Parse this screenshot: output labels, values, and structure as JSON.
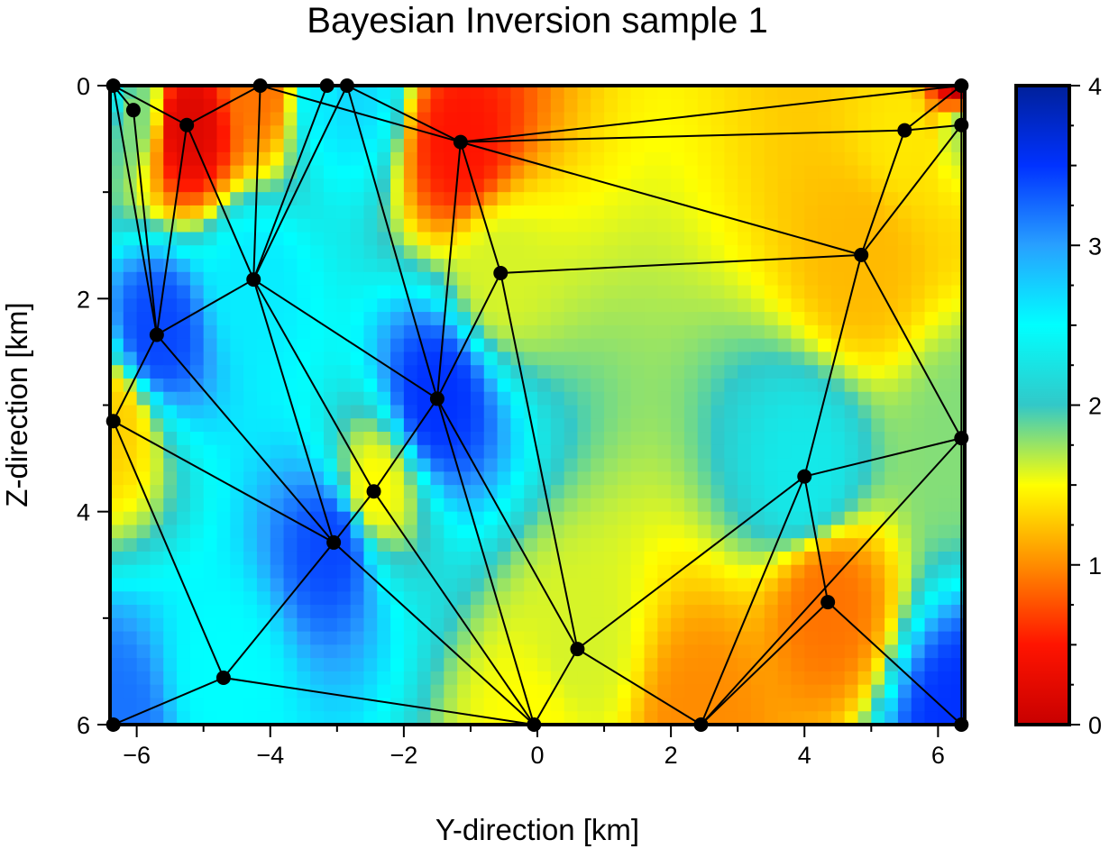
{
  "chart_data": {
    "type": "heatmap",
    "title": "Bayesian Inversion sample 1",
    "xlabel": "Y-direction [km]",
    "ylabel": "Z-direction [km]",
    "xlim": [
      -6.4,
      6.4
    ],
    "ylim": [
      0,
      6
    ],
    "y_inverted": true,
    "x_ticks": [
      -6,
      -4,
      -2,
      0,
      2,
      4,
      6
    ],
    "x_tick_labels": [
      "−6",
      "−4",
      "−2",
      "0",
      "2",
      "4",
      "6"
    ],
    "y_ticks": [
      0,
      2,
      4,
      6
    ],
    "y_tick_labels": [
      "0",
      "2",
      "4",
      "6"
    ],
    "colorbar": {
      "range": [
        0,
        4
      ],
      "ticks": [
        0,
        1,
        2,
        3,
        4
      ],
      "tick_labels": [
        "0",
        "1",
        "2",
        "3",
        "4"
      ],
      "colormap": [
        {
          "value": 0.0,
          "color": "#c80000"
        },
        {
          "value": 0.5,
          "color": "#ff1400"
        },
        {
          "value": 1.0,
          "color": "#ff8c00"
        },
        {
          "value": 1.5,
          "color": "#ffff00"
        },
        {
          "value": 2.0,
          "color": "#32c8c8"
        },
        {
          "value": 2.5,
          "color": "#00ffff"
        },
        {
          "value": 3.0,
          "color": "#28a0ff"
        },
        {
          "value": 3.5,
          "color": "#0032ff"
        },
        {
          "value": 4.0,
          "color": "#00209a"
        }
      ]
    },
    "nodes": [
      {
        "x": -6.35,
        "z": 0.0,
        "v": 2.4
      },
      {
        "x": -6.05,
        "z": 0.23,
        "v": 1.8
      },
      {
        "x": -5.25,
        "z": 0.37,
        "v": 0.2
      },
      {
        "x": -4.15,
        "z": 0.0,
        "v": 0.9
      },
      {
        "x": -3.15,
        "z": 0.0,
        "v": 2.6
      },
      {
        "x": -2.85,
        "z": 0.0,
        "v": 2.7
      },
      {
        "x": -1.15,
        "z": 0.53,
        "v": 0.5
      },
      {
        "x": 5.5,
        "z": 0.42,
        "v": 1.4
      },
      {
        "x": 6.35,
        "z": 0.0,
        "v": 0.0
      },
      {
        "x": 6.35,
        "z": 0.37,
        "v": 1.7
      },
      {
        "x": -4.25,
        "z": 1.82,
        "v": 2.6
      },
      {
        "x": -0.55,
        "z": 1.76,
        "v": 1.6
      },
      {
        "x": 4.85,
        "z": 1.59,
        "v": 1.2
      },
      {
        "x": -5.7,
        "z": 2.34,
        "v": 3.4
      },
      {
        "x": -1.5,
        "z": 2.94,
        "v": 3.5
      },
      {
        "x": -6.35,
        "z": 3.15,
        "v": 1.3
      },
      {
        "x": 6.35,
        "z": 3.31,
        "v": 1.8
      },
      {
        "x": 4.0,
        "z": 3.67,
        "v": 2.3
      },
      {
        "x": -2.45,
        "z": 3.81,
        "v": 1.5
      },
      {
        "x": -3.05,
        "z": 4.29,
        "v": 3.4
      },
      {
        "x": 4.35,
        "z": 4.85,
        "v": 0.9
      },
      {
        "x": 0.6,
        "z": 5.29,
        "v": 1.6
      },
      {
        "x": -4.7,
        "z": 5.56,
        "v": 2.5
      },
      {
        "x": -6.35,
        "z": 6.0,
        "v": 3.2
      },
      {
        "x": -0.05,
        "z": 6.0,
        "v": 1.5
      },
      {
        "x": 2.45,
        "z": 6.0,
        "v": 1.0
      },
      {
        "x": 6.35,
        "z": 6.0,
        "v": 3.5
      }
    ],
    "edges": [
      [
        0,
        1
      ],
      [
        0,
        2
      ],
      [
        0,
        13
      ],
      [
        1,
        13
      ],
      [
        2,
        3
      ],
      [
        2,
        10
      ],
      [
        2,
        13
      ],
      [
        3,
        10
      ],
      [
        3,
        6
      ],
      [
        4,
        10
      ],
      [
        5,
        10
      ],
      [
        4,
        5
      ],
      [
        5,
        6
      ],
      [
        5,
        14
      ],
      [
        6,
        7
      ],
      [
        6,
        8
      ],
      [
        6,
        11
      ],
      [
        6,
        12
      ],
      [
        6,
        14
      ],
      [
        7,
        8
      ],
      [
        7,
        9
      ],
      [
        7,
        12
      ],
      [
        8,
        9
      ],
      [
        9,
        12
      ],
      [
        9,
        16
      ],
      [
        10,
        13
      ],
      [
        10,
        14
      ],
      [
        10,
        18
      ],
      [
        10,
        19
      ],
      [
        11,
        12
      ],
      [
        11,
        14
      ],
      [
        11,
        21
      ],
      [
        12,
        16
      ],
      [
        12,
        17
      ],
      [
        13,
        15
      ],
      [
        13,
        19
      ],
      [
        14,
        18
      ],
      [
        14,
        21
      ],
      [
        14,
        24
      ],
      [
        15,
        19
      ],
      [
        15,
        22
      ],
      [
        16,
        17
      ],
      [
        16,
        25
      ],
      [
        16,
        26
      ],
      [
        17,
        20
      ],
      [
        17,
        21
      ],
      [
        17,
        25
      ],
      [
        18,
        19
      ],
      [
        18,
        24
      ],
      [
        19,
        22
      ],
      [
        19,
        24
      ],
      [
        20,
        25
      ],
      [
        20,
        26
      ],
      [
        21,
        24
      ],
      [
        21,
        25
      ],
      [
        22,
        23
      ],
      [
        22,
        24
      ]
    ]
  }
}
